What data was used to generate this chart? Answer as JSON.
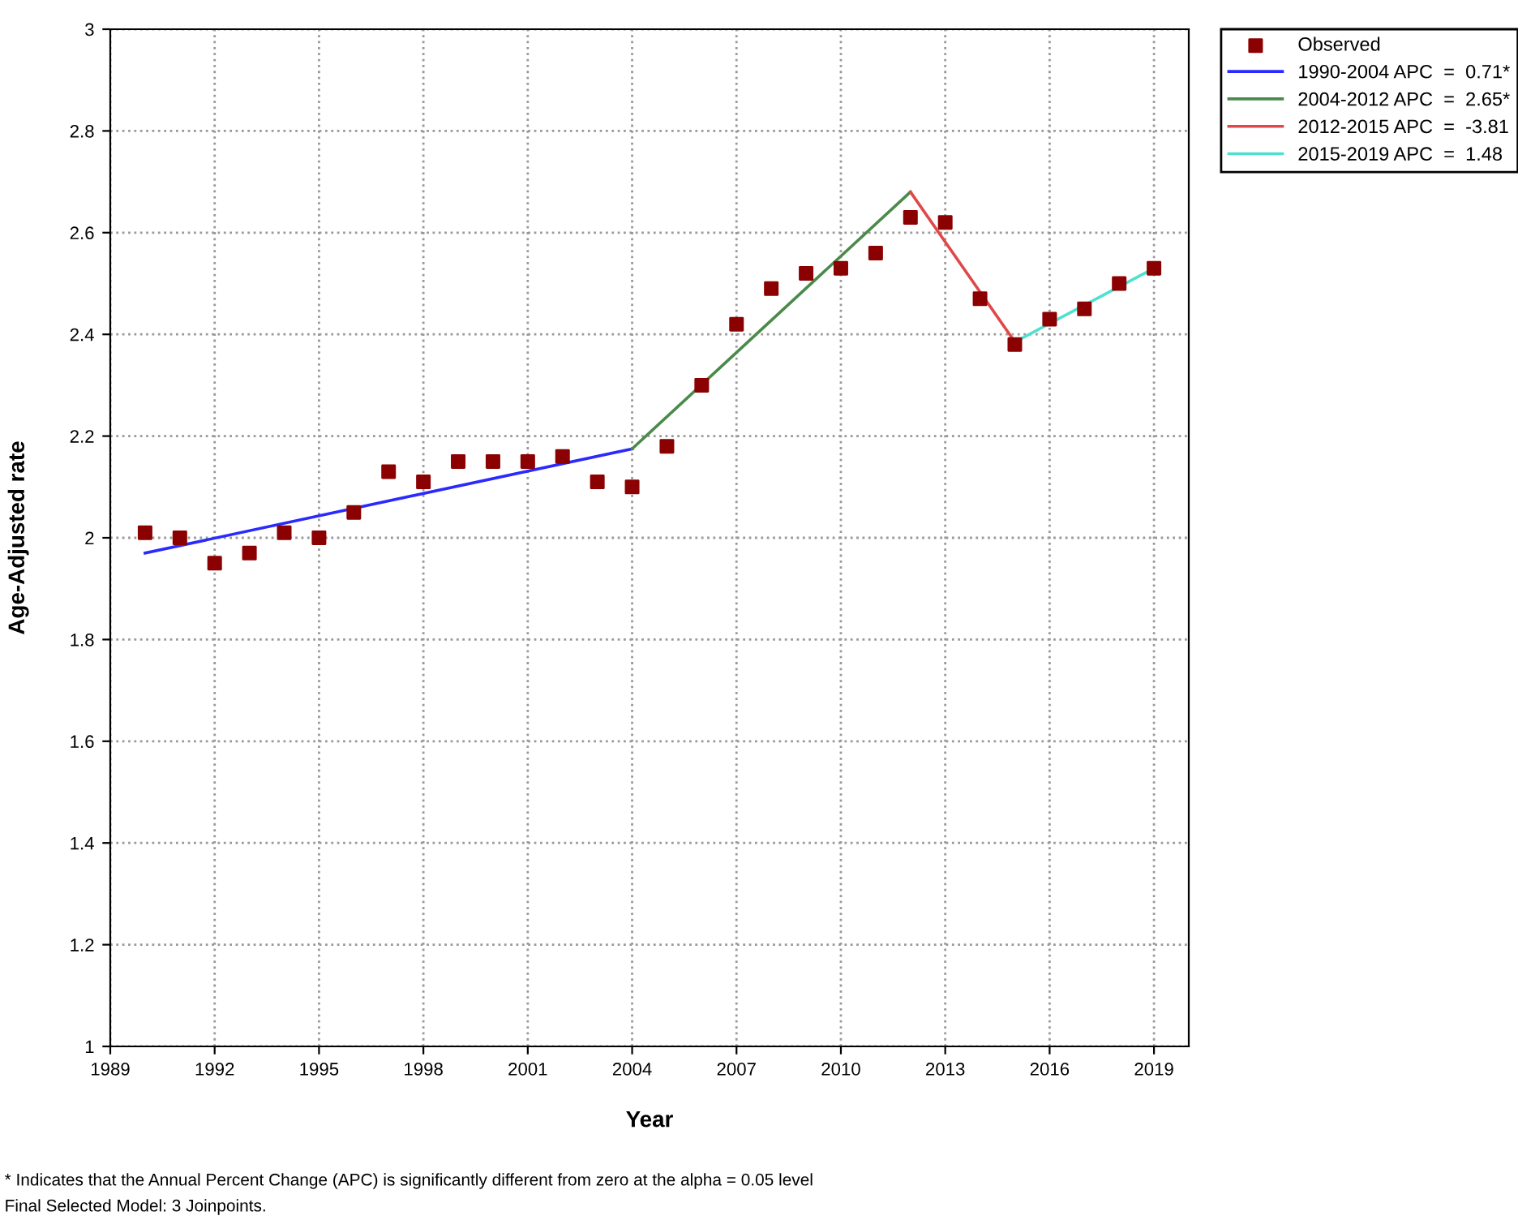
{
  "chart_data": {
    "type": "line",
    "xlabel": "Year",
    "ylabel": "Age-Adjusted rate",
    "xlim": [
      1989,
      2020
    ],
    "xticks": [
      1989,
      1992,
      1995,
      1998,
      2001,
      2004,
      2007,
      2010,
      2013,
      2016,
      2019
    ],
    "ylim": [
      1,
      3
    ],
    "yticks": [
      1,
      1.2,
      1.4,
      1.6,
      1.8,
      2,
      2.2,
      2.4,
      2.6,
      2.8,
      3
    ],
    "grid": true,
    "legend": "top right",
    "series": [
      {
        "name": "Observed",
        "type": "scatter",
        "marker": "square",
        "color": "#8b0000",
        "x": [
          1990,
          1991,
          1992,
          1993,
          1994,
          1995,
          1996,
          1997,
          1998,
          1999,
          2000,
          2001,
          2002,
          2003,
          2004,
          2005,
          2006,
          2007,
          2008,
          2009,
          2010,
          2011,
          2012,
          2013,
          2014,
          2015,
          2016,
          2017,
          2018,
          2019
        ],
        "values": [
          2.01,
          2.0,
          1.95,
          1.97,
          2.01,
          2.0,
          2.05,
          2.13,
          2.11,
          2.15,
          2.15,
          2.15,
          2.16,
          2.11,
          2.1,
          2.18,
          2.3,
          2.42,
          2.49,
          2.52,
          2.53,
          2.56,
          2.63,
          2.62,
          2.47,
          2.38,
          2.43,
          2.45,
          2.5,
          2.53
        ]
      },
      {
        "name": "1990-2004 APC  =  0.71*",
        "color": "#2a2aff",
        "x": [
          1990,
          2004
        ],
        "values": [
          1.97,
          2.175
        ]
      },
      {
        "name": "2004-2012 APC  =  2.65*",
        "color": "#4a8a4a",
        "x": [
          2004,
          2012
        ],
        "values": [
          2.175,
          2.68
        ]
      },
      {
        "name": "2012-2015 APC  =  -3.81",
        "color": "#e04848",
        "x": [
          2012,
          2015
        ],
        "values": [
          2.68,
          2.385
        ]
      },
      {
        "name": "2015-2019 APC  =  1.48",
        "color": "#50e0d0",
        "x": [
          2015,
          2019
        ],
        "values": [
          2.385,
          2.53
        ]
      }
    ],
    "annotations": [
      "* Indicates that the Annual Percent Change (APC) is significantly different from zero at the alpha = 0.05 level",
      "Final Selected Model: 3 Joinpoints."
    ]
  }
}
